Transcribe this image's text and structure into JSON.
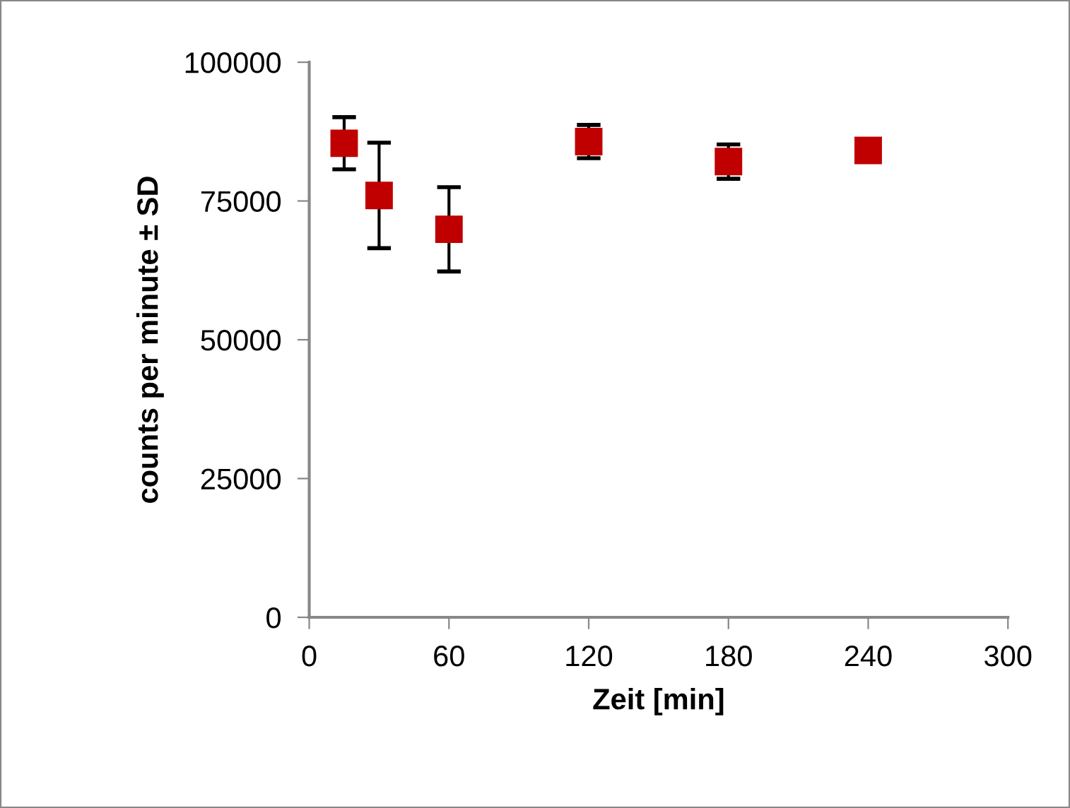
{
  "chart_data": {
    "type": "scatter",
    "xlabel": "Zeit [min]",
    "ylabel": "counts per minute ± SD",
    "x": [
      15,
      30,
      60,
      120,
      180,
      240
    ],
    "series": [
      {
        "color": "#c00000",
        "values": [
          85400,
          76000,
          69900,
          85700,
          82100,
          84100
        ],
        "errors": [
          4700,
          9500,
          7600,
          3000,
          3100,
          null
        ]
      }
    ],
    "xlim": [
      0,
      300
    ],
    "xticks": [
      0,
      60,
      120,
      180,
      240,
      300
    ],
    "ylim": [
      0,
      100000
    ],
    "yticks": [
      0,
      25000,
      50000,
      75000,
      100000
    ],
    "marker": "square",
    "grid": false,
    "legend": false
  }
}
